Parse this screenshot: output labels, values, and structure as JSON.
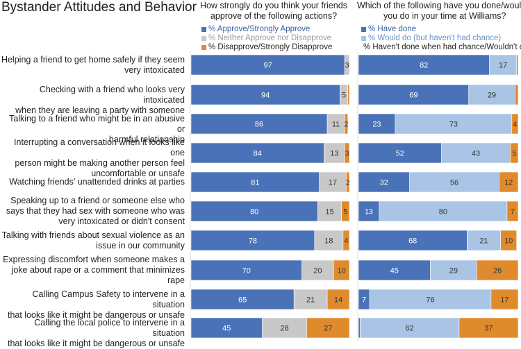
{
  "title": "Bystander Attitudes and Behavior",
  "colors": {
    "approve": "#4a72b8",
    "neither": "#c8c8c8",
    "disapprove": "#e08a2e",
    "have_done": "#4a72b8",
    "would_do": "#a9c4e4",
    "havent_done": "#e08a2e"
  },
  "chart_data": [
    {
      "type": "bar",
      "orientation": "horizontal",
      "stacked": true,
      "title": "How strongly do you think your friends approve of the following actions?",
      "title_lines": [
        "How strongly do you think your friends",
        "approve of the following actions?"
      ],
      "xlim": [
        0,
        100
      ],
      "categories": [
        "Helping a friend to get home safely if they seem very intoxicated",
        "Checking with a friend who looks very intoxicated when they are leaving a party with someone",
        "Talking to a friend who might be in an abusive or harmful relationship",
        "Interrupting a conversation when it looks like one person might be making another person feel uncomfortable or unsafe",
        "Watching friends' unattended drinks at parties",
        "Speaking up to a friend or someone else who says that they had sex with someone who was very intoxicated or didn't consent",
        "Talking with friends about sexual violence as an issue in our community",
        "Expressing discomfort when someone makes a joke about rape or a comment that minimizes rape",
        "Calling Campus Safety to intervene in a situation that looks like it might be dangerous or unsafe",
        "Calling the local police to intervene in a situation that looks like it might be dangerous or unsafe"
      ],
      "series": [
        {
          "name": "% Approve/Strongly Approve",
          "values": [
            97,
            94,
            86,
            84,
            81,
            80,
            78,
            70,
            65,
            45
          ]
        },
        {
          "name": "% Neither Approve nor Disapprove",
          "values": [
            3,
            5,
            11,
            13,
            17,
            15,
            18,
            20,
            21,
            28
          ]
        },
        {
          "name": "% Disapprove/Strongly Disapprove",
          "values": [
            0,
            1,
            2,
            3,
            2,
            5,
            4,
            10,
            14,
            27
          ]
        }
      ],
      "labels": [
        [
          "97",
          "3",
          ""
        ],
        [
          "94",
          "5",
          ""
        ],
        [
          "86",
          "11",
          "2"
        ],
        [
          "84",
          "13",
          "3"
        ],
        [
          "81",
          "17",
          "2"
        ],
        [
          "80",
          "15",
          "5"
        ],
        [
          "78",
          "18",
          "4"
        ],
        [
          "70",
          "20",
          "10"
        ],
        [
          "65",
          "21",
          "14"
        ],
        [
          "45",
          "28",
          "27"
        ]
      ]
    },
    {
      "type": "bar",
      "orientation": "horizontal",
      "stacked": true,
      "title": "Which of the following have you done/would you do in your time at Williams?",
      "title_lines": [
        "Which of the following have you done/would",
        "you do in your time at Williams?"
      ],
      "xlim": [
        0,
        100
      ],
      "series": [
        {
          "name": "% Have done",
          "values": [
            82,
            69,
            23,
            52,
            32,
            13,
            68,
            45,
            7,
            1
          ]
        },
        {
          "name": "% Would do (but haven't had chance)",
          "values": [
            17,
            29,
            73,
            43,
            56,
            80,
            21,
            29,
            76,
            62
          ]
        },
        {
          "name": "% Haven't done when had chance/Wouldn't do",
          "values": [
            1,
            2,
            4,
            5,
            12,
            7,
            10,
            26,
            17,
            37
          ]
        }
      ],
      "labels": [
        [
          "82",
          "17",
          ""
        ],
        [
          "69",
          "29",
          ""
        ],
        [
          "23",
          "73",
          "4"
        ],
        [
          "52",
          "43",
          "5"
        ],
        [
          "32",
          "56",
          "12"
        ],
        [
          "13",
          "80",
          "7"
        ],
        [
          "68",
          "21",
          "10"
        ],
        [
          "45",
          "29",
          "26"
        ],
        [
          "7",
          "76",
          "17"
        ],
        [
          "",
          "62",
          "37"
        ]
      ]
    }
  ],
  "row_label_lines": [
    [
      "Helping a friend to get home safely if they seem",
      "very intoxicated"
    ],
    [
      "Checking with a friend who looks very intoxicated",
      "when they are leaving a party with someone"
    ],
    [
      "Talking to a friend who might be in an abusive or",
      "harmful relationship"
    ],
    [
      "Interrupting a conversation when it looks like one",
      "person might be making another person feel",
      "uncomfortable or unsafe"
    ],
    [
      "Watching friends' unattended drinks at parties"
    ],
    [
      "Speaking up to a friend or someone else who",
      "says that they had sex with someone who was",
      "very intoxicated or didn't consent"
    ],
    [
      "Talking with friends about sexual violence as an",
      "issue in our community"
    ],
    [
      "Expressing discomfort when someone makes a",
      "joke about rape or a comment that minimizes",
      "rape"
    ],
    [
      "Calling Campus Safety to intervene in a situation",
      "that looks like it might be dangerous or unsafe"
    ],
    [
      "Calling the local police to intervene in a situation",
      "that looks like it might be dangerous or unsafe"
    ]
  ],
  "legends": [
    {
      "items": [
        {
          "label": "% Approve/Strongly Approve",
          "color": "#4a72b8",
          "text_color": "#3a5f9f"
        },
        {
          "label": "% Neither Approve nor Disapprove",
          "color": "#c8c8c8",
          "text_color": "#9a9a9a"
        },
        {
          "label": "% Disapprove/Strongly Disapprove",
          "color": "#e08a2e",
          "text_color": "#222222"
        }
      ]
    },
    {
      "items": [
        {
          "label": "% Have done",
          "color": "#4a72b8",
          "text_color": "#3a5f9f"
        },
        {
          "label": "% Would do (but haven't had chance)",
          "color": "#a9c4e4",
          "text_color": "#6f93c4"
        },
        {
          "label": "% Haven't done when had chance/Wouldn't do",
          "color": "#e08a2e",
          "text_color": "#222222"
        }
      ]
    }
  ]
}
